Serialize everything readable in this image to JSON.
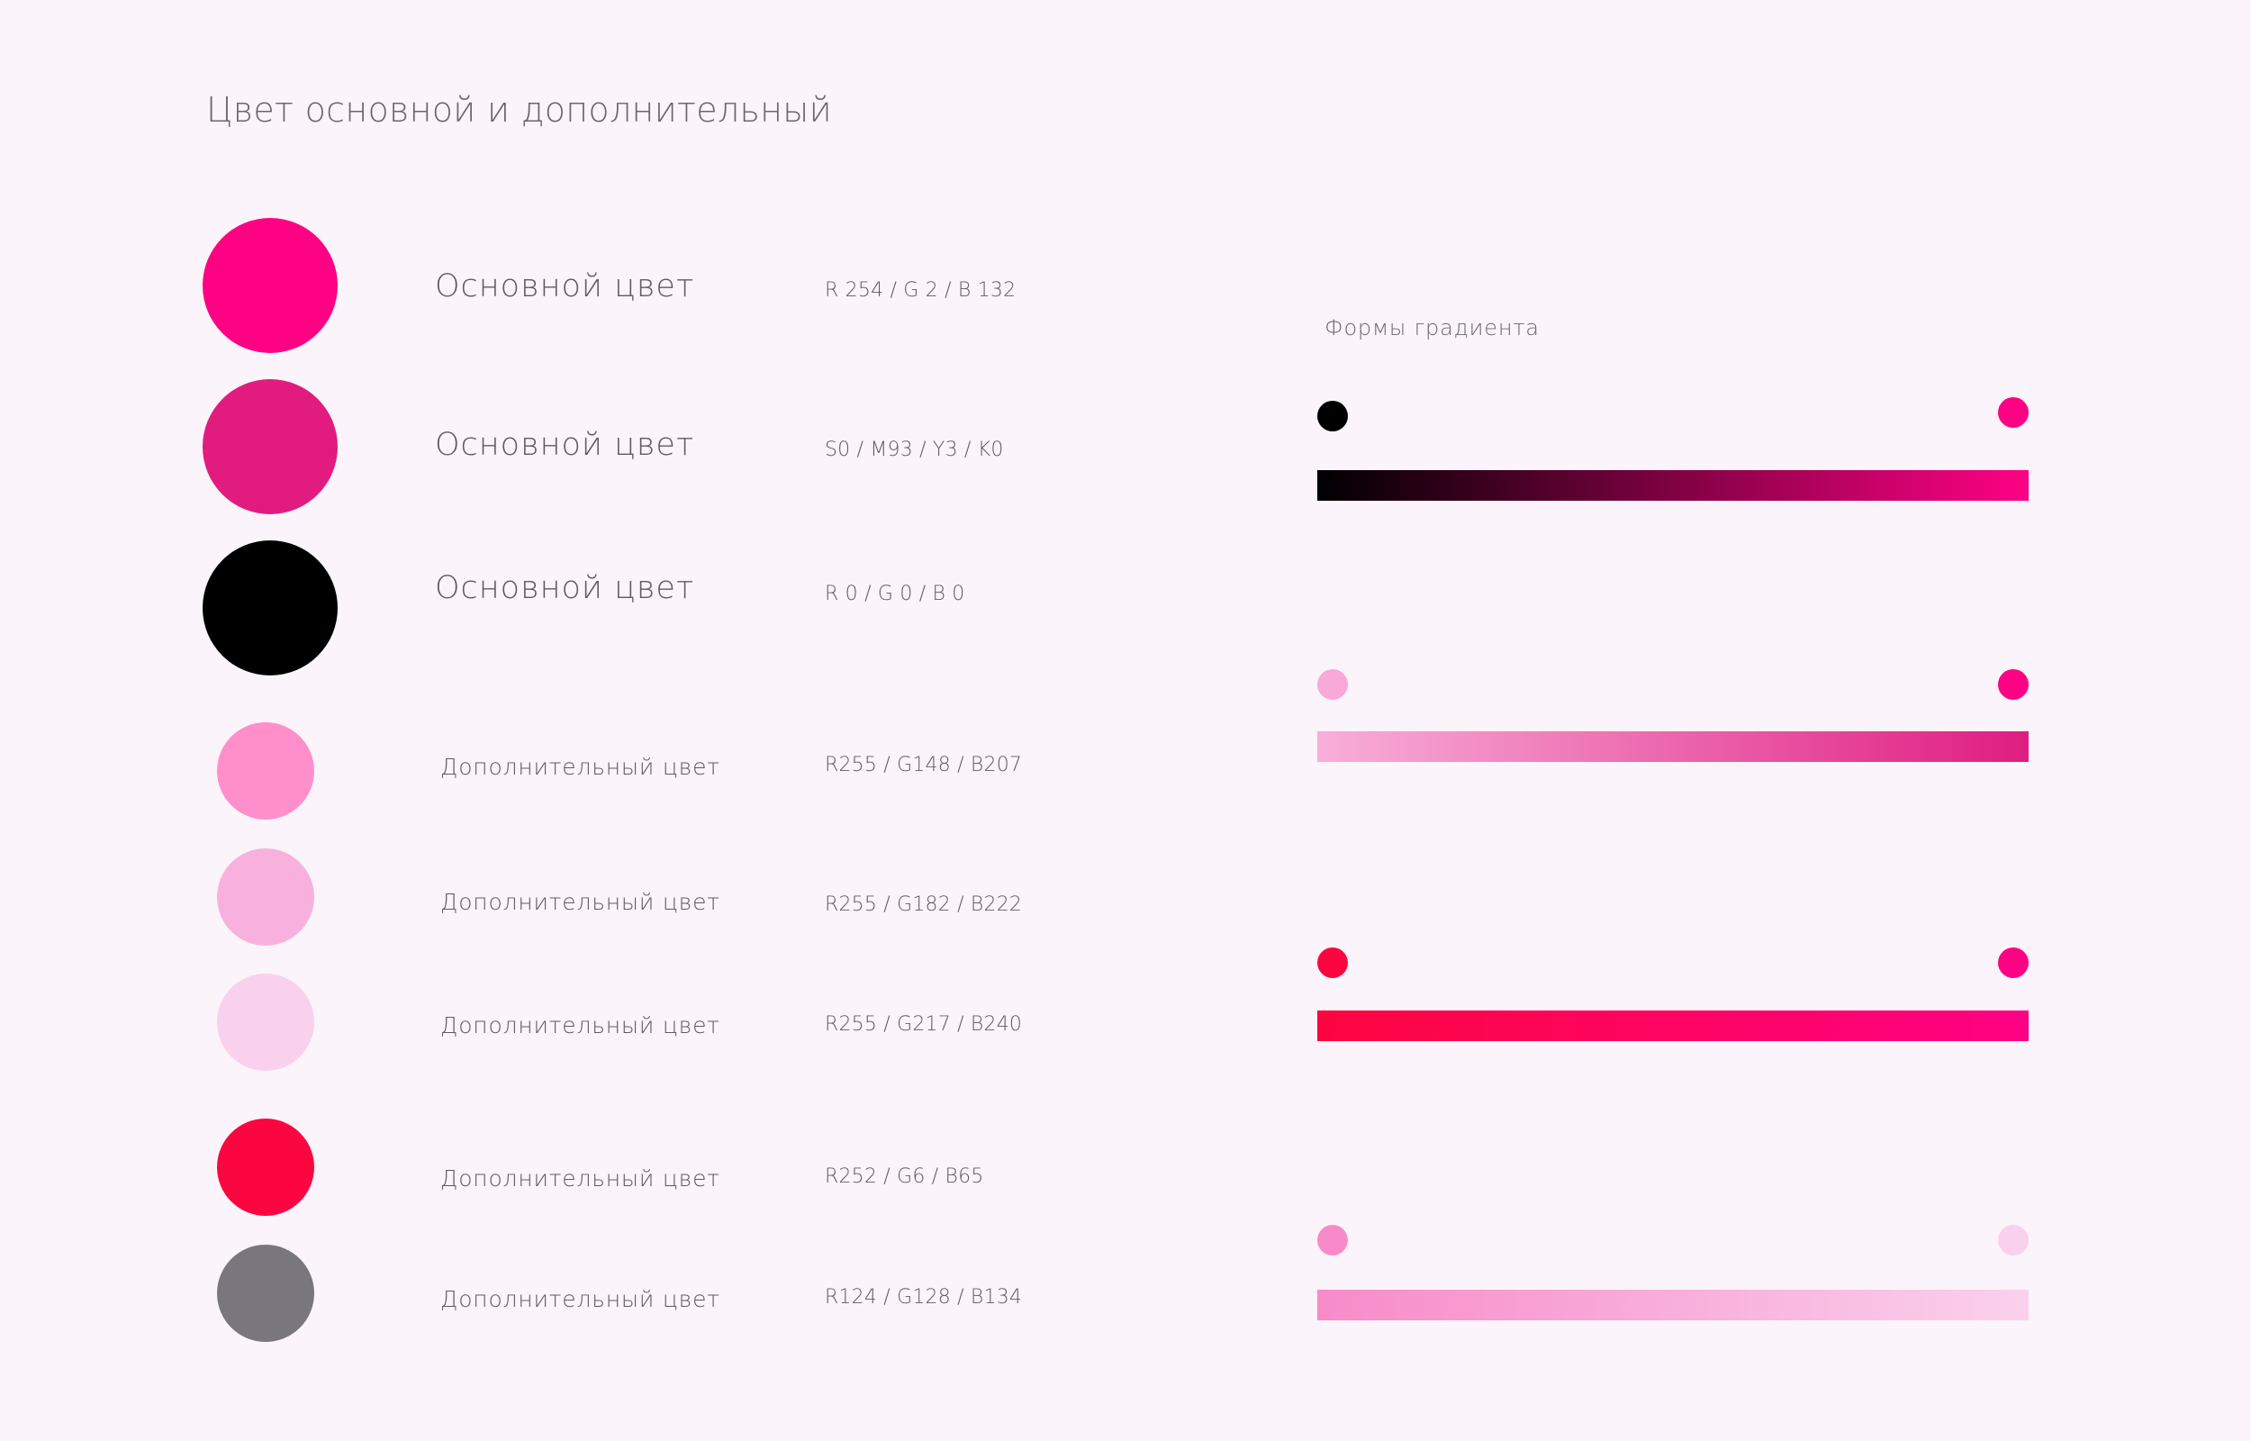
{
  "page": {
    "title": "Цвет основной и дополнительный",
    "background": "#fbf4fa"
  },
  "swatches": [
    {
      "name": "Основной цвет",
      "code": "R 254 / G 2 / B 132",
      "color": "#fe0284",
      "kind": "primary"
    },
    {
      "name": "Основной цвет",
      "code": "S0 / M93 / Y3 / K0",
      "color": "#e11c7e",
      "kind": "primary"
    },
    {
      "name": "Основной цвет",
      "code": "R 0 / G 0 / B 0",
      "color": "#000000",
      "kind": "primary"
    },
    {
      "name": "Дополнительный цвет",
      "code": "R255 / G148 / B207",
      "color": "#ff8fcb",
      "kind": "secondary"
    },
    {
      "name": "Дополнительный цвет",
      "code": "R255 / G182 / B222",
      "color": "#f8b1dc",
      "kind": "secondary"
    },
    {
      "name": "Дополнительный цвет",
      "code": "R255 / G217 / B240",
      "color": "#fad1ec",
      "kind": "secondary"
    },
    {
      "name": "Дополнительный цвет",
      "code": "R252 / G6 / B65",
      "color": "#fc0641",
      "kind": "secondary"
    },
    {
      "name": "Дополнительный цвет",
      "code": "R124 / G128 / B134",
      "color": "#79767e",
      "kind": "secondary"
    }
  ],
  "gradients": {
    "title": "Формы градиента",
    "items": [
      {
        "start": "#000000",
        "end": "#fe0284"
      },
      {
        "start": "#f8a9d7",
        "end": "#fe0284",
        "bar_start": "#f8afd9",
        "bar_end": "#df1d81"
      },
      {
        "start": "#fc0641",
        "end": "#fe0284"
      },
      {
        "start": "#f78bc9",
        "end": "#fad1ec"
      }
    ]
  }
}
